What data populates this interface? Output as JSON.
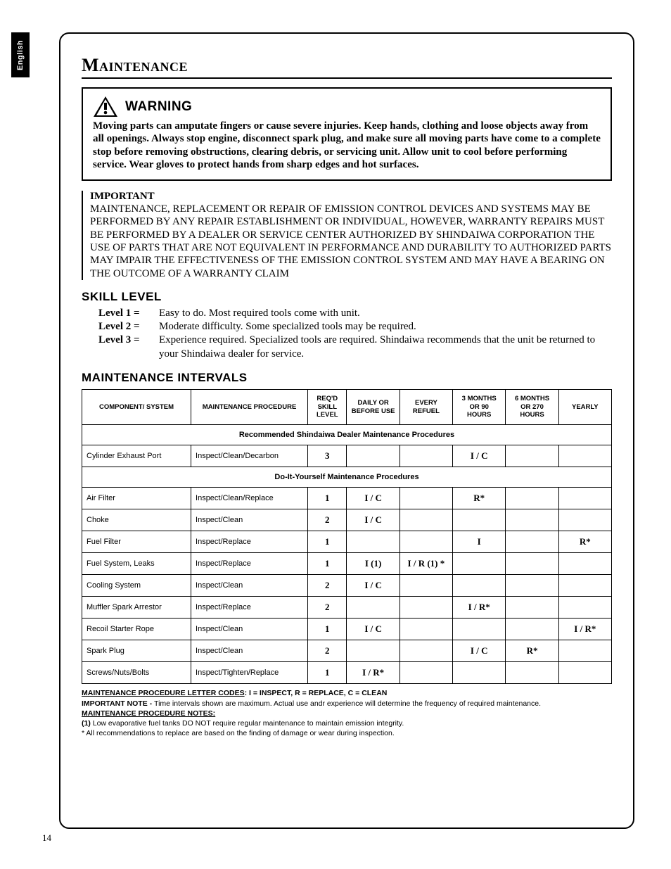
{
  "sideTab": "English",
  "pageNumber": "14",
  "title": "Maintenance",
  "warning": {
    "label": "WARNING",
    "text": "Moving parts can amputate fingers or cause severe injuries.  Keep hands, clothing and loose objects away from all openings.  Always stop engine, disconnect spark plug, and make sure all moving parts have come to a complete stop before removing obstructions, clearing debris, or servicing unit. Allow unit to cool before performing service. Wear gloves to protect hands from sharp edges and hot surfaces."
  },
  "important": {
    "label": "IMPORTANT",
    "text": "MAINTENANCE, REPLACEMENT OR REPAIR OF EMISSION CONTROL DEVICES AND SYSTEMS MAY BE PERFORMED BY ANY REPAIR ESTABLISHMENT OR INDIVIDUAL, HOWEVER, WARRANTY REPAIRS MUST BE PERFORMED BY A DEALER OR SERVICE CENTER AUTHORIZED BY SHINDAIWA CORPORATION THE USE OF PARTS THAT ARE NOT EQUIVALENT IN PERFORMANCE AND DURABILITY TO AUTHORIZED PARTS MAY IMPAIR THE EFFECTIVENESS OF THE EMISSION CONTROL SYSTEM AND MAY HAVE A BEARING ON THE OUTCOME OF A WARRANTY CLAIM"
  },
  "skillLevel": {
    "heading": "SKILL LEVEL",
    "levels": [
      {
        "label": "Level 1 =",
        "desc": "Easy to do. Most required tools come with unit."
      },
      {
        "label": "Level 2 =",
        "desc": "Moderate difficulty. Some specialized tools may be required."
      },
      {
        "label": "Level 3 =",
        "desc": "Experience required. Specialized tools are required. Shindaiwa recommends that the unit be returned to your Shindaiwa dealer for service."
      }
    ]
  },
  "intervals": {
    "heading": "MAINTENANCE INTERVALS",
    "headers": [
      "COMPONENT/ SYSTEM",
      "MAINTENANCE PROCEDURE",
      "REQ'D SKILL LEVEL",
      "DAILY OR BEFORE USE",
      "EVERY REFUEL",
      "3 MONTHS OR 90 HOURS",
      "6 MONTHS OR 270 HOURS",
      "YEARLY"
    ],
    "section1": "Recommended Shindaiwa Dealer Maintenance Procedures",
    "section2": "Do-It-Yourself Maintenance Procedures",
    "rows1": [
      {
        "c": "Cylinder Exhaust Port",
        "p": "Inspect/Clean/Decarbon",
        "s": "3",
        "d": "",
        "r": "",
        "m3": "I / C",
        "m6": "",
        "y": ""
      }
    ],
    "rows2": [
      {
        "c": "Air Filter",
        "p": "Inspect/Clean/Replace",
        "s": "1",
        "d": "I / C",
        "r": "",
        "m3": "R*",
        "m6": "",
        "y": ""
      },
      {
        "c": "Choke",
        "p": "Inspect/Clean",
        "s": "2",
        "d": "I / C",
        "r": "",
        "m3": "",
        "m6": "",
        "y": ""
      },
      {
        "c": "Fuel Filter",
        "p": "Inspect/Replace",
        "s": "1",
        "d": "",
        "r": "",
        "m3": "I",
        "m6": "",
        "y": "R*"
      },
      {
        "c": "Fuel System, Leaks",
        "p": "Inspect/Replace",
        "s": "1",
        "d": "I (1)",
        "r": "I / R (1) *",
        "m3": "",
        "m6": "",
        "y": ""
      },
      {
        "c": "Cooling System",
        "p": "Inspect/Clean",
        "s": "2",
        "d": "I / C",
        "r": "",
        "m3": "",
        "m6": "",
        "y": ""
      },
      {
        "c": "Muffler Spark Arrestor",
        "p": "Inspect/Replace",
        "s": "2",
        "d": "",
        "r": "",
        "m3": "I / R*",
        "m6": "",
        "y": ""
      },
      {
        "c": "Recoil Starter Rope",
        "p": "Inspect/Clean",
        "s": "1",
        "d": "I / C",
        "r": "",
        "m3": "",
        "m6": "",
        "y": "I / R*"
      },
      {
        "c": "Spark Plug",
        "p": "Inspect/Clean",
        "s": "2",
        "d": "",
        "r": "",
        "m3": "I / C",
        "m6": "R*",
        "y": ""
      },
      {
        "c": "Screws/Nuts/Bolts",
        "p": "Inspect/Tighten/Replace",
        "s": "1",
        "d": "I / R*",
        "r": "",
        "m3": "",
        "m6": "",
        "y": ""
      }
    ]
  },
  "notes": {
    "codesLabel": "MAINTENANCE PROCEDURE LETTER CODES",
    "codes": ":  I = INSPECT,  R = REPLACE,  C = CLEAN",
    "importantLabel": "IMPORTANT NOTE - ",
    "importantText": "Time intervals shown are maximum. Actual use andr experience will determine the frequency of required maintenance.",
    "procNotesLabel": "MAINTENANCE PROCEDURE NOTES:",
    "note1Label": "(1) ",
    "note1": "Low evaporative fuel tanks DO NOT require regular maintenance to maintain emission integrity.",
    "note2": "* All recommendations to replace are based on the finding of damage or wear during inspection."
  }
}
